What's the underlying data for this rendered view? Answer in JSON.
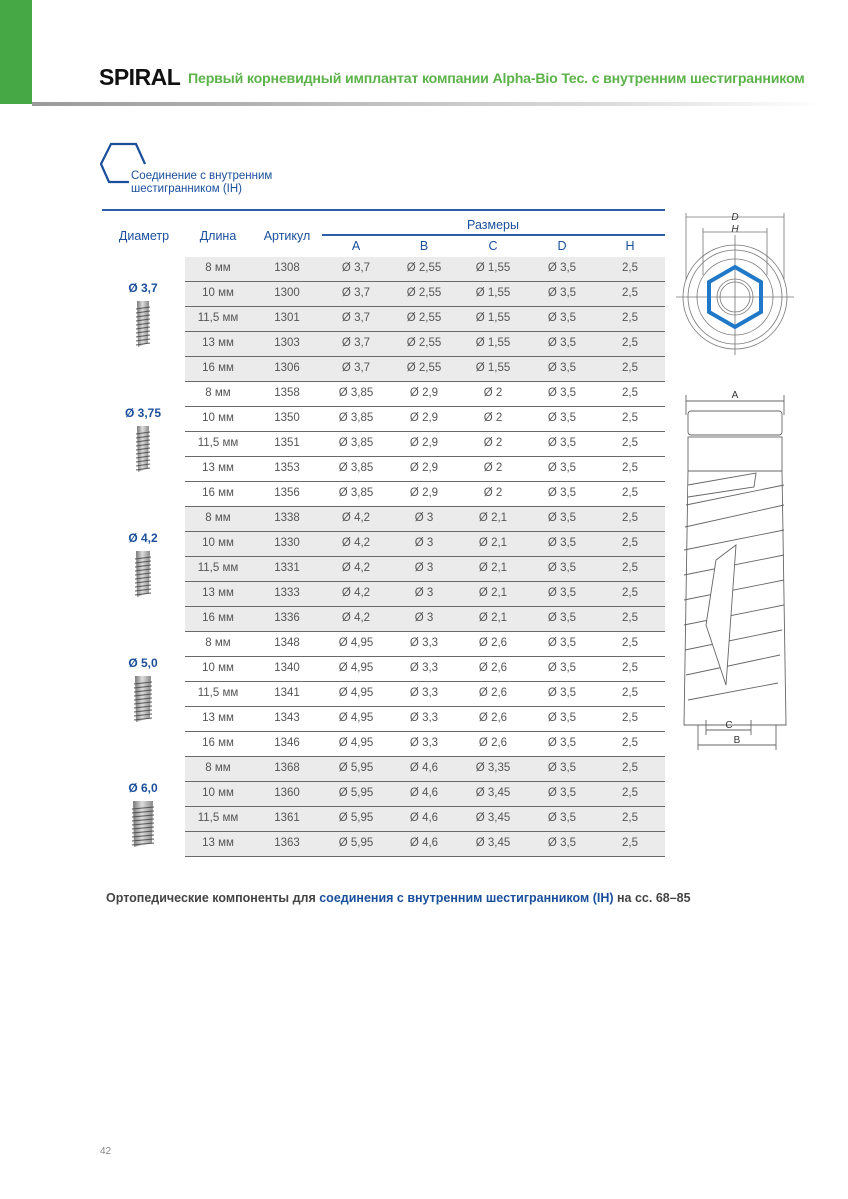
{
  "header": {
    "brand": "SPIRAL",
    "tagline": "Первый корневидный имплантат компании Alpha-Bio Tec. с внутренним шестигранником",
    "accent": "#45a845"
  },
  "connection": {
    "icon": "hexagon-icon",
    "line1": "Соединение с внутренним",
    "line2": "шестигранником (IH)"
  },
  "table": {
    "headers": {
      "diameter": "Диаметр",
      "length": "Длина",
      "article": "Артикул",
      "sizes": "Размеры",
      "cols": [
        "A",
        "B",
        "C",
        "D",
        "H"
      ]
    },
    "groups": [
      {
        "label": "Ø 3,7",
        "rows": [
          [
            "8 мм",
            "1308",
            "Ø 3,7",
            "Ø 2,55",
            "Ø 1,55",
            "Ø 3,5",
            "2,5"
          ],
          [
            "10 мм",
            "1300",
            "Ø 3,7",
            "Ø 2,55",
            "Ø 1,55",
            "Ø 3,5",
            "2,5"
          ],
          [
            "11,5 мм",
            "1301",
            "Ø 3,7",
            "Ø 2,55",
            "Ø 1,55",
            "Ø 3,5",
            "2,5"
          ],
          [
            "13 мм",
            "1303",
            "Ø 3,7",
            "Ø 2,55",
            "Ø 1,55",
            "Ø 3,5",
            "2,5"
          ],
          [
            "16 мм",
            "1306",
            "Ø 3,7",
            "Ø 2,55",
            "Ø 1,55",
            "Ø 3,5",
            "2,5"
          ]
        ]
      },
      {
        "label": "Ø 3,75",
        "rows": [
          [
            "8 мм",
            "1358",
            "Ø 3,85",
            "Ø 2,9",
            "Ø 2",
            "Ø 3,5",
            "2,5"
          ],
          [
            "10 мм",
            "1350",
            "Ø 3,85",
            "Ø 2,9",
            "Ø 2",
            "Ø 3,5",
            "2,5"
          ],
          [
            "11,5 мм",
            "1351",
            "Ø 3,85",
            "Ø 2,9",
            "Ø 2",
            "Ø 3,5",
            "2,5"
          ],
          [
            "13 мм",
            "1353",
            "Ø 3,85",
            "Ø 2,9",
            "Ø 2",
            "Ø 3,5",
            "2,5"
          ],
          [
            "16 мм",
            "1356",
            "Ø 3,85",
            "Ø 2,9",
            "Ø 2",
            "Ø 3,5",
            "2,5"
          ]
        ]
      },
      {
        "label": "Ø 4,2",
        "rows": [
          [
            "8 мм",
            "1338",
            "Ø 4,2",
            "Ø 3",
            "Ø 2,1",
            "Ø 3,5",
            "2,5"
          ],
          [
            "10 мм",
            "1330",
            "Ø 4,2",
            "Ø 3",
            "Ø 2,1",
            "Ø 3,5",
            "2,5"
          ],
          [
            "11,5 мм",
            "1331",
            "Ø 4,2",
            "Ø 3",
            "Ø 2,1",
            "Ø 3,5",
            "2,5"
          ],
          [
            "13 мм",
            "1333",
            "Ø 4,2",
            "Ø 3",
            "Ø 2,1",
            "Ø 3,5",
            "2,5"
          ],
          [
            "16 мм",
            "1336",
            "Ø 4,2",
            "Ø 3",
            "Ø 2,1",
            "Ø 3,5",
            "2,5"
          ]
        ]
      },
      {
        "label": "Ø 5,0",
        "rows": [
          [
            "8 мм",
            "1348",
            "Ø 4,95",
            "Ø 3,3",
            "Ø 2,6",
            "Ø 3,5",
            "2,5"
          ],
          [
            "10 мм",
            "1340",
            "Ø 4,95",
            "Ø 3,3",
            "Ø 2,6",
            "Ø 3,5",
            "2,5"
          ],
          [
            "11,5 мм",
            "1341",
            "Ø 4,95",
            "Ø 3,3",
            "Ø 2,6",
            "Ø 3,5",
            "2,5"
          ],
          [
            "13 мм",
            "1343",
            "Ø 4,95",
            "Ø 3,3",
            "Ø 2,6",
            "Ø 3,5",
            "2,5"
          ],
          [
            "16 мм",
            "1346",
            "Ø 4,95",
            "Ø 3,3",
            "Ø 2,6",
            "Ø 3,5",
            "2,5"
          ]
        ]
      },
      {
        "label": "Ø 6,0",
        "rows": [
          [
            "8 мм",
            "1368",
            "Ø 5,95",
            "Ø 4,6",
            "Ø 3,35",
            "Ø 3,5",
            "2,5"
          ],
          [
            "10 мм",
            "1360",
            "Ø 5,95",
            "Ø 4,6",
            "Ø 3,45",
            "Ø 3,5",
            "2,5"
          ],
          [
            "11,5 мм",
            "1361",
            "Ø 5,95",
            "Ø 4,6",
            "Ø 3,45",
            "Ø 3,5",
            "2,5"
          ],
          [
            "13 мм",
            "1363",
            "Ø 5,95",
            "Ø 4,6",
            "Ø 3,45",
            "Ø 3,5",
            "2,5"
          ]
        ]
      }
    ]
  },
  "diagram": {
    "top_labels": [
      "D",
      "H"
    ],
    "side_labels": [
      "A",
      "C",
      "B"
    ],
    "hex_color": "#1f78c8"
  },
  "footnote": {
    "pre": "Ортопедические компоненты для ",
    "link": "соединения с внутренним шестигранником (IH)",
    "post": " на сс. 68–85"
  },
  "page_number": "42"
}
